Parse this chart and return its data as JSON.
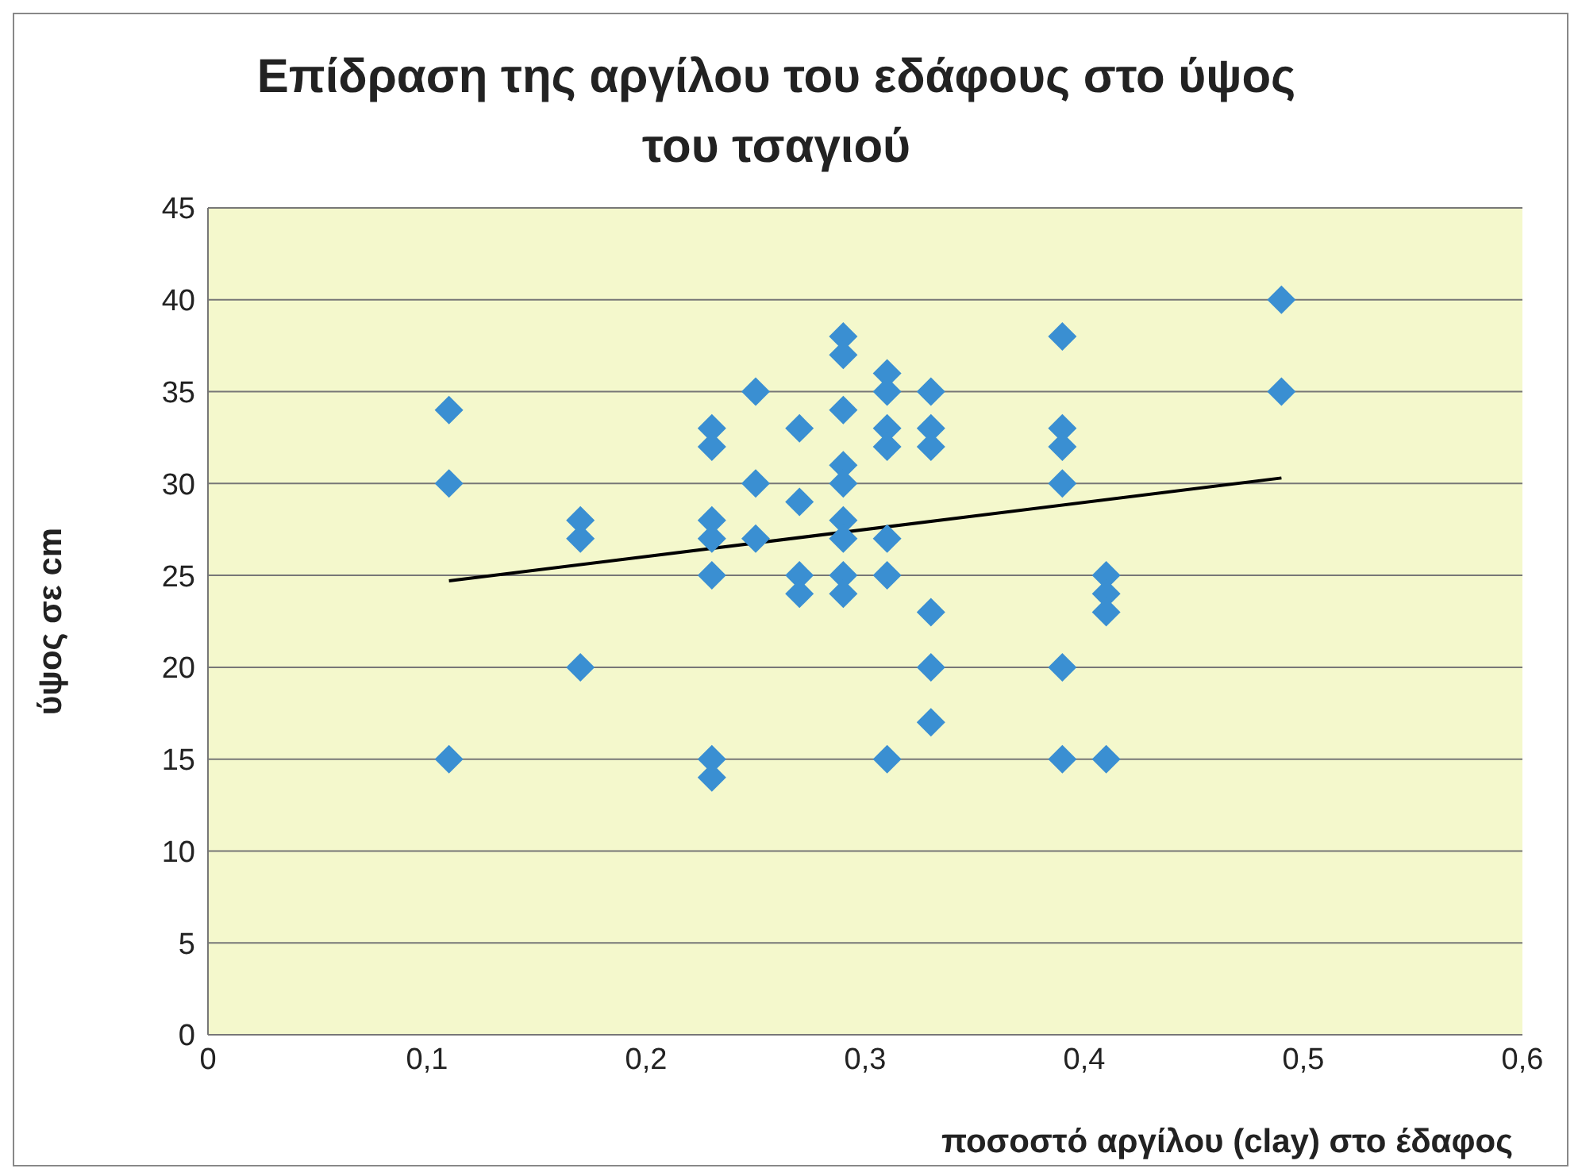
{
  "chart_data": {
    "type": "scatter",
    "title": "Επίδραση της αργίλου του εδάφους στο ύψος του τσαγιού",
    "xlabel": "ποσοστό αργίλου (clay) στο έδαφος",
    "ylabel": "ύψος σε cm",
    "xlim": [
      0,
      0.6
    ],
    "xticks": [
      {
        "value": 0,
        "label": "0"
      },
      {
        "value": 0.1,
        "label": "0,1"
      },
      {
        "value": 0.2,
        "label": "0,2"
      },
      {
        "value": 0.3,
        "label": "0,3"
      },
      {
        "value": 0.4,
        "label": "0,4"
      },
      {
        "value": 0.5,
        "label": "0,5"
      },
      {
        "value": 0.6,
        "label": "0,6"
      }
    ],
    "ylim": [
      0,
      45
    ],
    "yticks": [
      0,
      5,
      10,
      15,
      20,
      25,
      30,
      35,
      40,
      45
    ],
    "grid": "y",
    "legend": false,
    "series": [
      {
        "marker": "diamond",
        "color": "#3a8fd2",
        "x": [
          0.11,
          0.11,
          0.11,
          0.17,
          0.17,
          0.17,
          0.23,
          0.23,
          0.23,
          0.23,
          0.23,
          0.23,
          0.23,
          0.25,
          0.25,
          0.25,
          0.27,
          0.27,
          0.27,
          0.27,
          0.29,
          0.29,
          0.29,
          0.29,
          0.29,
          0.29,
          0.29,
          0.29,
          0.29,
          0.31,
          0.31,
          0.31,
          0.31,
          0.31,
          0.31,
          0.31,
          0.33,
          0.33,
          0.33,
          0.33,
          0.33,
          0.33,
          0.39,
          0.39,
          0.39,
          0.39,
          0.39,
          0.39,
          0.41,
          0.41,
          0.41,
          0.41,
          0.49,
          0.49
        ],
        "values": [
          34,
          30,
          15,
          28,
          27,
          20,
          33,
          32,
          28,
          27,
          25,
          15,
          14,
          35,
          30,
          27,
          33,
          29,
          25,
          24,
          38,
          37,
          34,
          31,
          30,
          28,
          27,
          25,
          24,
          36,
          35,
          33,
          32,
          27,
          25,
          15,
          35,
          33,
          32,
          23,
          20,
          17,
          38,
          33,
          32,
          30,
          20,
          15,
          25,
          24,
          23,
          15,
          40,
          35
        ]
      },
      {
        "type": "line",
        "marker": "none",
        "color": "#000000",
        "x": [
          0.11,
          0.49
        ],
        "values": [
          24.7,
          30.3
        ]
      }
    ]
  }
}
